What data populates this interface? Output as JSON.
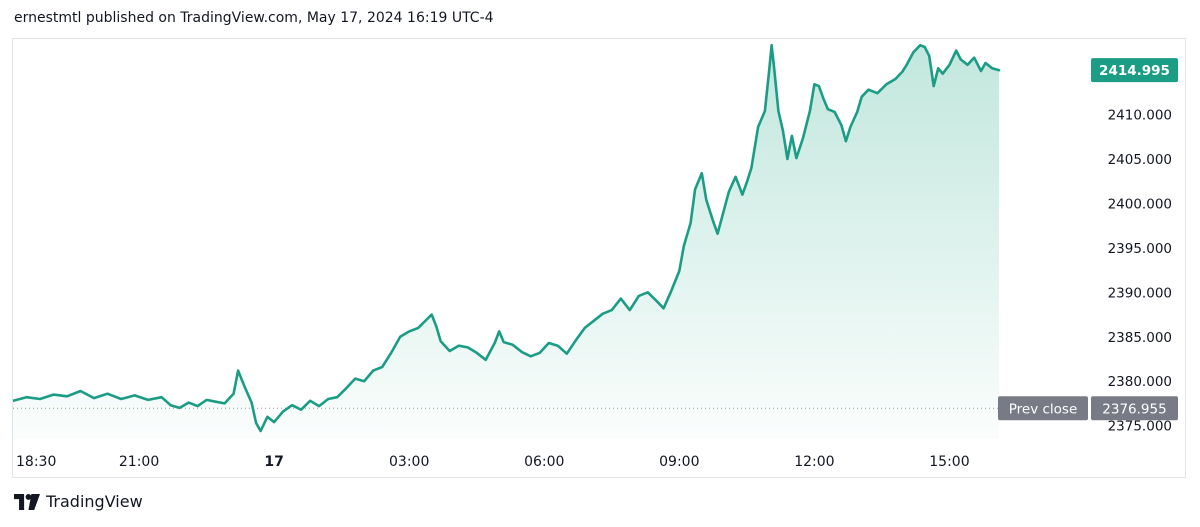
{
  "header": {
    "text": "ernestmtl published on TradingView.com, May 17, 2024 16:19 UTC-4"
  },
  "footer": {
    "brand": "TradingView"
  },
  "colors": {
    "line": "#1b9c85",
    "fill_top": "#8fd3c1",
    "badge": "#1b9c85",
    "prev_close_badge": "#787b86",
    "grid": "#e0e3eb"
  },
  "chart_data": {
    "type": "area",
    "title": "",
    "xlabel": "",
    "ylabel": "",
    "ylim": [
      2373.5,
      2418.5
    ],
    "y_ticks": [
      {
        "value": 2375,
        "label": "2375.000"
      },
      {
        "value": 2380,
        "label": "2380.000"
      },
      {
        "value": 2385,
        "label": "2385.000"
      },
      {
        "value": 2390,
        "label": "2390.000"
      },
      {
        "value": 2395,
        "label": "2395.000"
      },
      {
        "value": 2400,
        "label": "2400.000"
      },
      {
        "value": 2405,
        "label": "2405.000"
      },
      {
        "value": 2410,
        "label": "2410.000"
      }
    ],
    "x_ticks": [
      {
        "t": 0,
        "label": "18:30"
      },
      {
        "t": 2.5,
        "label": "21:00"
      },
      {
        "t": 5.5,
        "label": "17",
        "bold": true
      },
      {
        "t": 8.5,
        "label": "03:00"
      },
      {
        "t": 11.5,
        "label": "06:00"
      },
      {
        "t": 14.5,
        "label": "09:00"
      },
      {
        "t": 17.5,
        "label": "12:00"
      },
      {
        "t": 20.5,
        "label": "15:00"
      }
    ],
    "x_range": [
      -0.3,
      22.8
    ],
    "last_price": {
      "value": 2414.995,
      "label": "2414.995"
    },
    "prev_close": {
      "value": 2376.955,
      "label": "2376.955",
      "name": "Prev close"
    },
    "series": [
      {
        "points": [
          [
            -0.3,
            2377.8
          ],
          [
            0.0,
            2378.2
          ],
          [
            0.3,
            2378.0
          ],
          [
            0.6,
            2378.5
          ],
          [
            0.9,
            2378.3
          ],
          [
            1.2,
            2378.9
          ],
          [
            1.5,
            2378.1
          ],
          [
            1.8,
            2378.6
          ],
          [
            2.1,
            2378.0
          ],
          [
            2.4,
            2378.4
          ],
          [
            2.7,
            2377.9
          ],
          [
            3.0,
            2378.2
          ],
          [
            3.2,
            2377.3
          ],
          [
            3.4,
            2377.0
          ],
          [
            3.6,
            2377.6
          ],
          [
            3.8,
            2377.2
          ],
          [
            4.0,
            2377.9
          ],
          [
            4.2,
            2377.7
          ],
          [
            4.4,
            2377.5
          ],
          [
            4.6,
            2378.6
          ],
          [
            4.7,
            2381.2
          ],
          [
            4.85,
            2379.3
          ],
          [
            5.0,
            2377.6
          ],
          [
            5.1,
            2375.3
          ],
          [
            5.2,
            2374.4
          ],
          [
            5.35,
            2376.0
          ],
          [
            5.5,
            2375.4
          ],
          [
            5.7,
            2376.6
          ],
          [
            5.9,
            2377.3
          ],
          [
            6.1,
            2376.8
          ],
          [
            6.3,
            2377.8
          ],
          [
            6.5,
            2377.2
          ],
          [
            6.7,
            2378.0
          ],
          [
            6.9,
            2378.2
          ],
          [
            7.1,
            2379.2
          ],
          [
            7.3,
            2380.3
          ],
          [
            7.5,
            2380.0
          ],
          [
            7.7,
            2381.2
          ],
          [
            7.9,
            2381.6
          ],
          [
            8.1,
            2383.2
          ],
          [
            8.3,
            2385.0
          ],
          [
            8.5,
            2385.6
          ],
          [
            8.7,
            2386.0
          ],
          [
            8.9,
            2387.0
          ],
          [
            9.0,
            2387.5
          ],
          [
            9.1,
            2386.2
          ],
          [
            9.2,
            2384.5
          ],
          [
            9.4,
            2383.4
          ],
          [
            9.6,
            2384.0
          ],
          [
            9.8,
            2383.8
          ],
          [
            10.0,
            2383.2
          ],
          [
            10.2,
            2382.4
          ],
          [
            10.4,
            2384.3
          ],
          [
            10.5,
            2385.6
          ],
          [
            10.6,
            2384.4
          ],
          [
            10.8,
            2384.1
          ],
          [
            11.0,
            2383.3
          ],
          [
            11.2,
            2382.8
          ],
          [
            11.4,
            2383.2
          ],
          [
            11.6,
            2384.3
          ],
          [
            11.8,
            2384.0
          ],
          [
            12.0,
            2383.1
          ],
          [
            12.2,
            2384.6
          ],
          [
            12.4,
            2386.0
          ],
          [
            12.6,
            2386.8
          ],
          [
            12.8,
            2387.6
          ],
          [
            13.0,
            2388.0
          ],
          [
            13.2,
            2389.3
          ],
          [
            13.4,
            2388.0
          ],
          [
            13.6,
            2389.6
          ],
          [
            13.8,
            2390.0
          ],
          [
            14.0,
            2389.0
          ],
          [
            14.15,
            2388.2
          ],
          [
            14.3,
            2389.9
          ],
          [
            14.5,
            2392.4
          ],
          [
            14.6,
            2395.2
          ],
          [
            14.75,
            2397.8
          ],
          [
            14.85,
            2401.6
          ],
          [
            15.0,
            2403.4
          ],
          [
            15.1,
            2400.4
          ],
          [
            15.25,
            2398.0
          ],
          [
            15.35,
            2396.6
          ],
          [
            15.5,
            2399.4
          ],
          [
            15.6,
            2401.3
          ],
          [
            15.75,
            2403.0
          ],
          [
            15.9,
            2401.0
          ],
          [
            16.0,
            2402.4
          ],
          [
            16.1,
            2404.0
          ],
          [
            16.25,
            2408.6
          ],
          [
            16.4,
            2410.4
          ],
          [
            16.5,
            2415.2
          ],
          [
            16.55,
            2417.8
          ],
          [
            16.6,
            2415.5
          ],
          [
            16.7,
            2410.4
          ],
          [
            16.8,
            2408.2
          ],
          [
            16.9,
            2405.0
          ],
          [
            17.0,
            2407.6
          ],
          [
            17.1,
            2405.1
          ],
          [
            17.25,
            2407.4
          ],
          [
            17.4,
            2410.4
          ],
          [
            17.5,
            2413.4
          ],
          [
            17.6,
            2413.2
          ],
          [
            17.7,
            2411.8
          ],
          [
            17.8,
            2410.6
          ],
          [
            17.95,
            2410.3
          ],
          [
            18.1,
            2408.8
          ],
          [
            18.2,
            2407.0
          ],
          [
            18.3,
            2408.6
          ],
          [
            18.45,
            2410.3
          ],
          [
            18.55,
            2412.0
          ],
          [
            18.7,
            2412.8
          ],
          [
            18.9,
            2412.4
          ],
          [
            19.1,
            2413.4
          ],
          [
            19.3,
            2414.0
          ],
          [
            19.45,
            2414.8
          ],
          [
            19.55,
            2415.6
          ],
          [
            19.7,
            2417.0
          ],
          [
            19.85,
            2417.8
          ],
          [
            19.95,
            2417.6
          ],
          [
            20.05,
            2416.6
          ],
          [
            20.15,
            2413.2
          ],
          [
            20.25,
            2415.2
          ],
          [
            20.35,
            2414.6
          ],
          [
            20.5,
            2415.6
          ],
          [
            20.65,
            2417.2
          ],
          [
            20.75,
            2416.2
          ],
          [
            20.9,
            2415.6
          ],
          [
            21.05,
            2416.4
          ],
          [
            21.2,
            2414.9
          ],
          [
            21.3,
            2415.8
          ],
          [
            21.45,
            2415.2
          ],
          [
            21.6,
            2414.995
          ]
        ]
      }
    ]
  }
}
